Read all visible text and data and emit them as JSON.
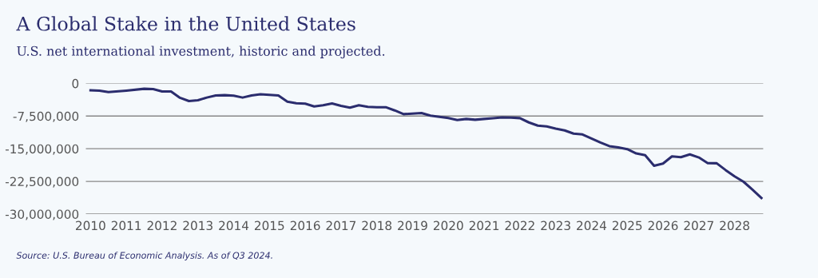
{
  "chart_data": {
    "type": "line",
    "title": "A Global Stake in the United States",
    "subtitle": "U.S. net international investment, historic and projected.",
    "annotations": [
      "Source: U.S. Bureau of Economic Analysis. As of Q3 2024."
    ],
    "x": [
      2010.0,
      2010.25,
      2010.5,
      2011.0,
      2011.5,
      2011.75,
      2012.0,
      2012.25,
      2012.5,
      2012.75,
      2013.0,
      2013.25,
      2013.5,
      2013.75,
      2014.0,
      2014.25,
      2014.5,
      2014.75,
      2015.0,
      2015.25,
      2015.5,
      2015.75,
      2016.0,
      2016.25,
      2016.5,
      2016.75,
      2017.0,
      2017.25,
      2017.5,
      2017.75,
      2018.0,
      2018.25,
      2018.5,
      2018.75,
      2019.25,
      2019.5,
      2019.75,
      2020.0,
      2020.25,
      2020.5,
      2020.75,
      2021.0,
      2021.25,
      2021.5,
      2021.75,
      2022.0,
      2022.25,
      2022.5,
      2022.75,
      2023.0,
      2023.25,
      2023.5,
      2023.75,
      2024.0,
      2024.25,
      2024.5,
      2024.75,
      2025.0,
      2025.25,
      2025.5,
      2025.75,
      2026.0,
      2026.25,
      2026.5,
      2026.75,
      2027.0,
      2027.25,
      2027.5,
      2027.75,
      2028.0,
      2028.25,
      2028.5,
      2028.75
    ],
    "series": [
      {
        "color": "#2b2d6e",
        "values": [
          -1600000,
          -1660000,
          -2000000,
          -1660000,
          -1230000,
          -1290000,
          -1840000,
          -1840000,
          -3300000,
          -4050000,
          -3870000,
          -3250000,
          -2760000,
          -2700000,
          -2800000,
          -3250000,
          -2760000,
          -2500000,
          -2640000,
          -2760000,
          -4170000,
          -4540000,
          -4660000,
          -5280000,
          -5030000,
          -4600000,
          -5150000,
          -5580000,
          -5030000,
          -5400000,
          -5460000,
          -5460000,
          -6200000,
          -7060000,
          -6800000,
          -7400000,
          -7670000,
          -7970000,
          -8400000,
          -8160000,
          -8340000,
          -8160000,
          -8000000,
          -7800000,
          -7850000,
          -7970000,
          -8960000,
          -9700000,
          -9880000,
          -10370000,
          -10800000,
          -11530000,
          -11720000,
          -12640000,
          -13560000,
          -14400000,
          -14700000,
          -15100000,
          -16070000,
          -16500000,
          -18900000,
          -18400000,
          -16750000,
          -16930000,
          -16300000,
          -17000000,
          -18300000,
          -18340000,
          -19900000,
          -21350000,
          -22580000,
          -24400000,
          -26300000
        ]
      }
    ],
    "xlim": [
      2009.87,
      2028.8
    ],
    "xticks": [
      2010,
      2011,
      2012,
      2013,
      2014,
      2015,
      2016,
      2017,
      2018,
      2019,
      2020,
      2021,
      2022,
      2023,
      2024,
      2025,
      2026,
      2027,
      2028
    ],
    "ylim": [
      -30000000,
      0
    ],
    "yticks": [
      0,
      {
        "value": -7500000,
        "label": "-7,500,000"
      },
      {
        "value": -15000000,
        "label": "-15,000,000"
      },
      {
        "value": -22500000,
        "label": "-22,500,000"
      },
      {
        "value": -30000000,
        "label": "-30,000,000"
      }
    ],
    "grid": "y",
    "legend": false,
    "marker": "none",
    "line_style": "solid"
  }
}
